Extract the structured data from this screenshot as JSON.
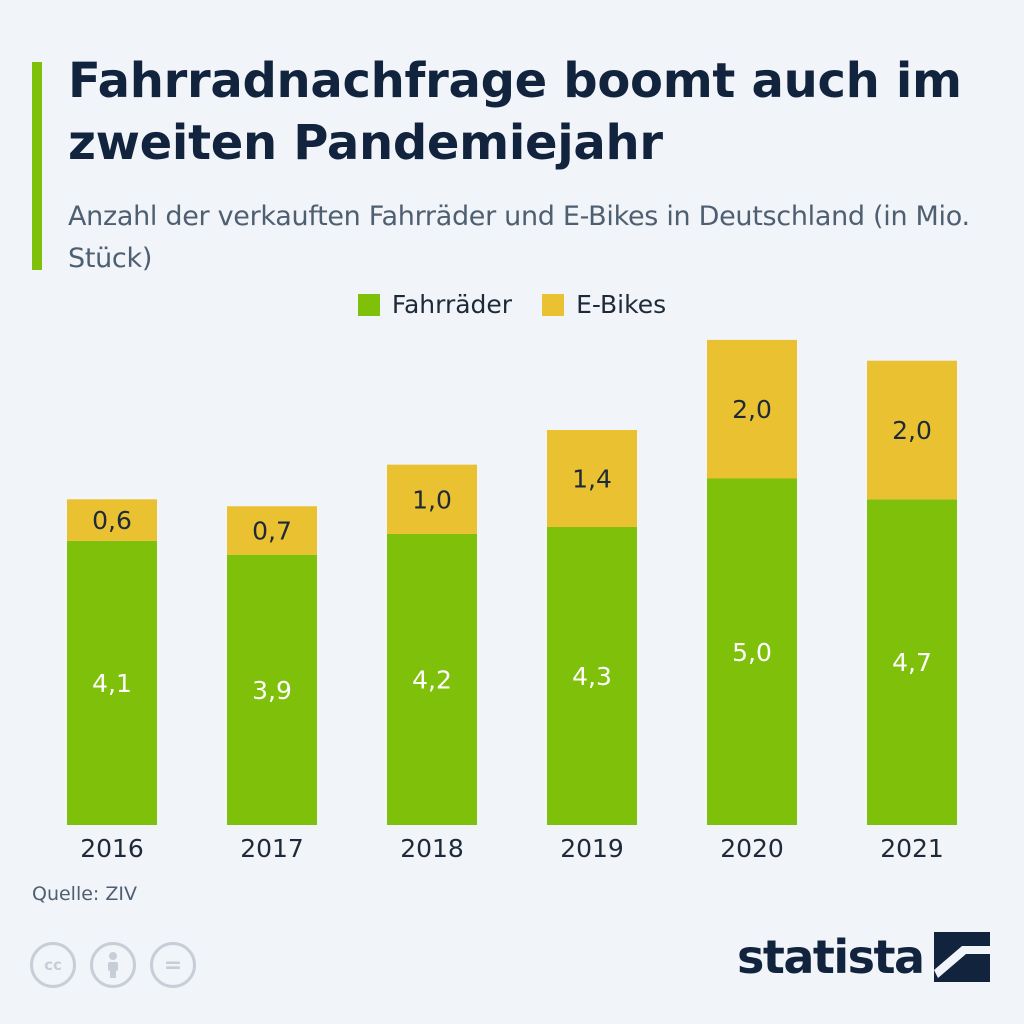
{
  "title": "Fahrradnachfrage boomt auch im zweiten Pandemiejahr",
  "subtitle": "Anzahl der verkauften Fahrräder und E-Bikes in Deutschland (in Mio. Stück)",
  "source": "Quelle: ZIV",
  "brand": "statista",
  "colors": {
    "accent": "#7fc00b",
    "fahrraeder": "#7fc00b",
    "ebikes": "#eac131",
    "text_dark": "#12233d"
  },
  "legend": [
    {
      "label": "Fahrräder",
      "color": "#7fc00b"
    },
    {
      "label": "E-Bikes",
      "color": "#eac131"
    }
  ],
  "icons": [
    "cc-icon",
    "attribution-icon",
    "no-derivatives-icon",
    "statista-logo-icon"
  ],
  "cc_glyphs": [
    "cc",
    "=",
    ""
  ],
  "chart_data": {
    "type": "bar",
    "stacked": true,
    "categories": [
      "2016",
      "2017",
      "2018",
      "2019",
      "2020",
      "2021"
    ],
    "series": [
      {
        "name": "Fahrräder",
        "values": [
          4.1,
          3.9,
          4.2,
          4.3,
          5.0,
          4.7
        ],
        "labels": [
          "4,1",
          "3,9",
          "4,2",
          "4,3",
          "5,0",
          "4,7"
        ]
      },
      {
        "name": "E-Bikes",
        "values": [
          0.6,
          0.7,
          1.0,
          1.4,
          2.0,
          2.0
        ],
        "labels": [
          "0,6",
          "0,7",
          "1,0",
          "1,4",
          "2,0",
          "2,0"
        ]
      }
    ],
    "ylim": [
      0,
      7
    ],
    "grid": false,
    "legend_position": "top-center"
  }
}
